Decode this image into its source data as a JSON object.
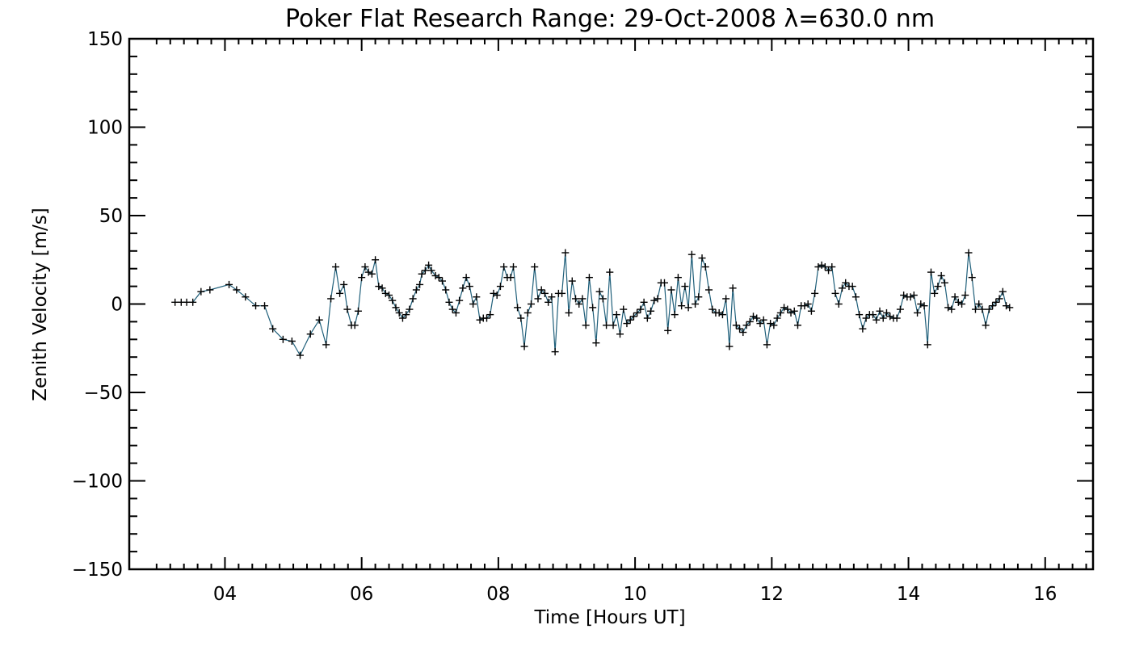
{
  "chart_data": {
    "type": "line",
    "title": "Poker Flat Research Range: 29-Oct-2008 λ=630.0 nm",
    "xlabel": "Time [Hours UT]",
    "ylabel": "Zenith Velocity [m/s]",
    "xlim": [
      2.6,
      16.7
    ],
    "ylim": [
      -150,
      150
    ],
    "x_ticks": [
      4,
      6,
      8,
      10,
      12,
      14,
      16
    ],
    "x_tick_labels": [
      "04",
      "06",
      "08",
      "10",
      "12",
      "14",
      "16"
    ],
    "y_ticks": [
      -150,
      -100,
      -50,
      0,
      50,
      100,
      150
    ],
    "y_tick_labels": [
      "−150",
      "−100",
      "−50",
      "0",
      "50",
      "100",
      "150"
    ],
    "grid": false,
    "line_color": "#1f5f7a",
    "marker_color": "#000000",
    "marker": "plus",
    "series": [
      {
        "points": [
          [
            3.27,
            1
          ],
          [
            3.36,
            1
          ],
          [
            3.44,
            1
          ],
          [
            3.53,
            1
          ],
          [
            3.65,
            7
          ],
          [
            3.78,
            8
          ],
          [
            4.06,
            11
          ],
          [
            4.17,
            8
          ],
          [
            4.3,
            4
          ],
          [
            4.45,
            -1
          ],
          [
            4.58,
            -1
          ],
          [
            4.7,
            -14
          ],
          [
            4.85,
            -20
          ],
          [
            4.98,
            -21
          ],
          [
            5.1,
            -29
          ],
          [
            5.25,
            -17
          ],
          [
            5.38,
            -9
          ],
          [
            5.48,
            -23
          ],
          [
            5.55,
            3
          ],
          [
            5.62,
            21
          ],
          [
            5.68,
            6
          ],
          [
            5.74,
            11
          ],
          [
            5.79,
            -3
          ],
          [
            5.85,
            -12
          ],
          [
            5.9,
            -12
          ],
          [
            5.95,
            -4
          ],
          [
            6.0,
            15
          ],
          [
            6.05,
            21
          ],
          [
            6.1,
            18
          ],
          [
            6.15,
            17
          ],
          [
            6.2,
            25
          ],
          [
            6.25,
            10
          ],
          [
            6.3,
            9
          ],
          [
            6.35,
            6
          ],
          [
            6.4,
            5
          ],
          [
            6.45,
            2
          ],
          [
            6.5,
            -2
          ],
          [
            6.55,
            -5
          ],
          [
            6.6,
            -8
          ],
          [
            6.65,
            -6
          ],
          [
            6.7,
            -3
          ],
          [
            6.75,
            3
          ],
          [
            6.8,
            8
          ],
          [
            6.85,
            11
          ],
          [
            6.88,
            17
          ],
          [
            6.93,
            19
          ],
          [
            6.98,
            22
          ],
          [
            7.02,
            19
          ],
          [
            7.08,
            16
          ],
          [
            7.13,
            15
          ],
          [
            7.18,
            13
          ],
          [
            7.23,
            8
          ],
          [
            7.28,
            1
          ],
          [
            7.33,
            -3
          ],
          [
            7.38,
            -5
          ],
          [
            7.43,
            2
          ],
          [
            7.48,
            9
          ],
          [
            7.53,
            15
          ],
          [
            7.58,
            10
          ],
          [
            7.63,
            0
          ],
          [
            7.68,
            4
          ],
          [
            7.73,
            -9
          ],
          [
            7.78,
            -8
          ],
          [
            7.83,
            -8
          ],
          [
            7.88,
            -6
          ],
          [
            7.93,
            6
          ],
          [
            7.98,
            5
          ],
          [
            8.03,
            10
          ],
          [
            8.08,
            21
          ],
          [
            8.13,
            15
          ],
          [
            8.18,
            15
          ],
          [
            8.22,
            21
          ],
          [
            8.28,
            -2
          ],
          [
            8.33,
            -8
          ],
          [
            8.38,
            -24
          ],
          [
            8.43,
            -5
          ],
          [
            8.48,
            0
          ],
          [
            8.53,
            21
          ],
          [
            8.58,
            3
          ],
          [
            8.63,
            8
          ],
          [
            8.68,
            6
          ],
          [
            8.73,
            1
          ],
          [
            8.78,
            4
          ],
          [
            8.83,
            -27
          ],
          [
            8.88,
            6
          ],
          [
            8.93,
            6
          ],
          [
            8.98,
            29
          ],
          [
            9.03,
            -5
          ],
          [
            9.08,
            13
          ],
          [
            9.13,
            3
          ],
          [
            9.18,
            0
          ],
          [
            9.23,
            3
          ],
          [
            9.28,
            -12
          ],
          [
            9.33,
            15
          ],
          [
            9.38,
            -2
          ],
          [
            9.43,
            -22
          ],
          [
            9.48,
            7
          ],
          [
            9.53,
            3
          ],
          [
            9.58,
            -12
          ],
          [
            9.63,
            18
          ],
          [
            9.68,
            -12
          ],
          [
            9.73,
            -6
          ],
          [
            9.78,
            -17
          ],
          [
            9.83,
            -3
          ],
          [
            9.88,
            -11
          ],
          [
            9.93,
            -9
          ],
          [
            9.98,
            -7
          ],
          [
            10.03,
            -5
          ],
          [
            10.08,
            -3
          ],
          [
            10.13,
            1
          ],
          [
            10.18,
            -8
          ],
          [
            10.23,
            -4
          ],
          [
            10.28,
            2
          ],
          [
            10.33,
            3
          ],
          [
            10.38,
            12
          ],
          [
            10.43,
            12
          ],
          [
            10.48,
            -15
          ],
          [
            10.53,
            8
          ],
          [
            10.58,
            -6
          ],
          [
            10.63,
            15
          ],
          [
            10.68,
            -1
          ],
          [
            10.73,
            10
          ],
          [
            10.78,
            -2
          ],
          [
            10.83,
            28
          ],
          [
            10.88,
            0
          ],
          [
            10.93,
            4
          ],
          [
            10.98,
            26
          ],
          [
            11.03,
            21
          ],
          [
            11.08,
            8
          ],
          [
            11.13,
            -3
          ],
          [
            11.18,
            -5
          ],
          [
            11.23,
            -5
          ],
          [
            11.28,
            -6
          ],
          [
            11.33,
            3
          ],
          [
            11.38,
            -24
          ],
          [
            11.43,
            9
          ],
          [
            11.48,
            -12
          ],
          [
            11.53,
            -14
          ],
          [
            11.58,
            -16
          ],
          [
            11.63,
            -12
          ],
          [
            11.68,
            -10
          ],
          [
            11.73,
            -7
          ],
          [
            11.78,
            -8
          ],
          [
            11.83,
            -11
          ],
          [
            11.88,
            -9
          ],
          [
            11.93,
            -23
          ],
          [
            11.98,
            -11
          ],
          [
            12.03,
            -12
          ],
          [
            12.08,
            -8
          ],
          [
            12.13,
            -5
          ],
          [
            12.18,
            -2
          ],
          [
            12.23,
            -3
          ],
          [
            12.28,
            -5
          ],
          [
            12.33,
            -4
          ],
          [
            12.38,
            -12
          ],
          [
            12.43,
            -1
          ],
          [
            12.48,
            -1
          ],
          [
            12.53,
            0
          ],
          [
            12.58,
            -4
          ],
          [
            12.63,
            6
          ],
          [
            12.68,
            21
          ],
          [
            12.73,
            22
          ],
          [
            12.78,
            21
          ],
          [
            12.83,
            19
          ],
          [
            12.88,
            21
          ],
          [
            12.93,
            6
          ],
          [
            12.98,
            0
          ],
          [
            13.03,
            9
          ],
          [
            13.08,
            12
          ],
          [
            13.13,
            10
          ],
          [
            13.18,
            10
          ],
          [
            13.23,
            4
          ],
          [
            13.28,
            -6
          ],
          [
            13.33,
            -14
          ],
          [
            13.38,
            -8
          ],
          [
            13.43,
            -6
          ],
          [
            13.48,
            -6
          ],
          [
            13.53,
            -9
          ],
          [
            13.58,
            -4
          ],
          [
            13.63,
            -8
          ],
          [
            13.68,
            -5
          ],
          [
            13.73,
            -7
          ],
          [
            13.78,
            -8
          ],
          [
            13.83,
            -8
          ],
          [
            13.88,
            -3
          ],
          [
            13.93,
            5
          ],
          [
            13.98,
            4
          ],
          [
            14.03,
            4
          ],
          [
            14.08,
            5
          ],
          [
            14.13,
            -5
          ],
          [
            14.18,
            0
          ],
          [
            14.23,
            -1
          ],
          [
            14.28,
            -23
          ],
          [
            14.33,
            18
          ],
          [
            14.38,
            6
          ],
          [
            14.43,
            10
          ],
          [
            14.48,
            16
          ],
          [
            14.53,
            12
          ],
          [
            14.58,
            -2
          ],
          [
            14.63,
            -3
          ],
          [
            14.68,
            4
          ],
          [
            14.73,
            1
          ],
          [
            14.78,
            0
          ],
          [
            14.83,
            5
          ],
          [
            14.88,
            29
          ],
          [
            14.93,
            15
          ],
          [
            14.98,
            -3
          ],
          [
            15.03,
            0
          ],
          [
            15.08,
            -3
          ],
          [
            15.13,
            -12
          ],
          [
            15.18,
            -3
          ],
          [
            15.23,
            -1
          ],
          [
            15.28,
            1
          ],
          [
            15.33,
            3
          ],
          [
            15.38,
            7
          ],
          [
            15.43,
            -1
          ],
          [
            15.48,
            -2
          ]
        ]
      }
    ]
  }
}
